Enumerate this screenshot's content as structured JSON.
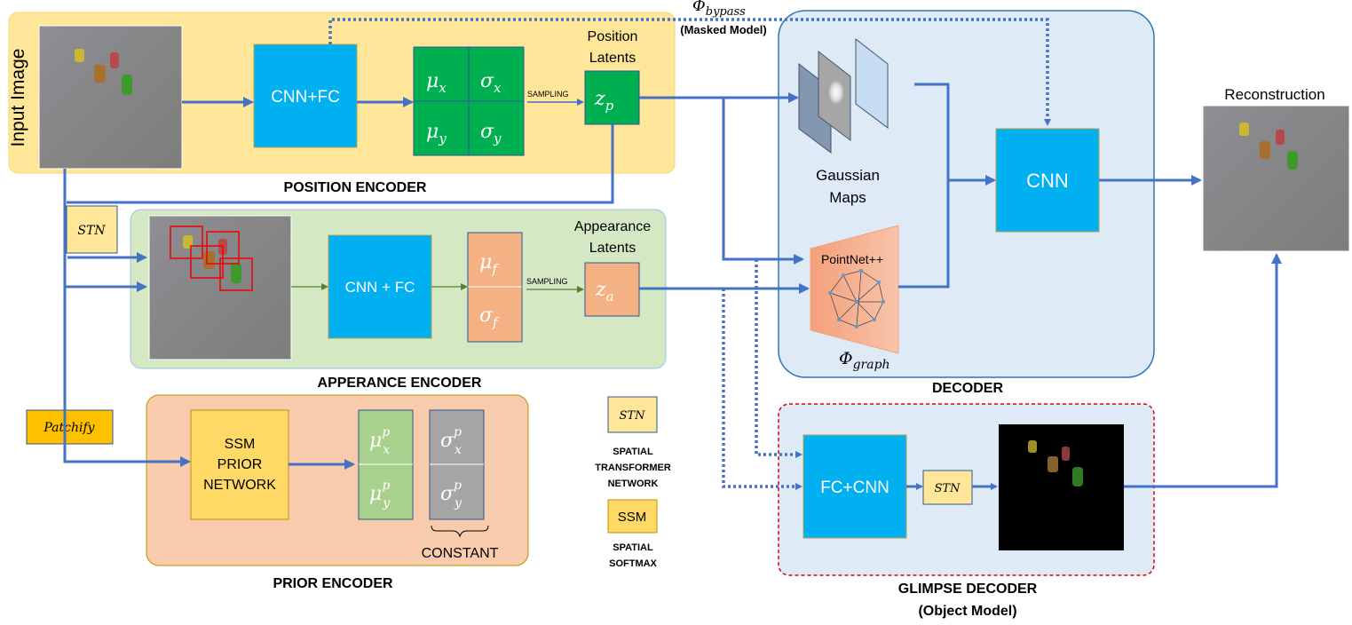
{
  "colors": {
    "arrow": "#4472C4",
    "position_bg": "#FFE699",
    "appearance_bg": "#D5E8C4",
    "prior_bg": "#F8CBAD",
    "decoder_bg": "#DEEBF7",
    "cnn_blue": "#00B0F0",
    "latent_green": "#00B050",
    "latent_orange": "#F4B183",
    "prior_green": "#A9D18E",
    "prior_gray": "#A5A5A5",
    "ssm_yellow": "#FFD966",
    "patchify_gold": "#FFC000",
    "glimpse_border": "#E00000"
  },
  "position_encoder": {
    "title": "POSITION ENCODER",
    "input_label": "Input Image",
    "cnn_label": "CNN+FC",
    "mu_x": {
      "base": "μ",
      "sub": "x"
    },
    "sigma_x": {
      "base": "σ",
      "sub": "x"
    },
    "mu_y": {
      "base": "μ",
      "sub": "y"
    },
    "sigma_y": {
      "base": "σ",
      "sub": "y"
    },
    "sampling": "SAMPLING",
    "latents_label": [
      "Position",
      "Latents"
    ],
    "z": {
      "base": "z",
      "sub": "p"
    }
  },
  "bypass": {
    "symbol": "Φ",
    "sub": "bypass",
    "label": "(Masked Model)"
  },
  "stn_label": "STN",
  "appearance_encoder": {
    "title": "APPERANCE ENCODER",
    "cnn_label": "CNN + FC",
    "mu_f": {
      "base": "μ",
      "sub": "f"
    },
    "sigma_f": {
      "base": "σ",
      "sub": "f"
    },
    "sampling": "SAMPLING",
    "latents_label": [
      "Appearance",
      "Latents"
    ],
    "z": {
      "base": "z",
      "sub": "a"
    }
  },
  "prior_encoder": {
    "title": "PRIOR ENCODER",
    "patchify": "Patchify",
    "ssm_label": [
      "SSM",
      "PRIOR",
      "NETWORK"
    ],
    "mu_x": {
      "base": "μ",
      "sub": "x",
      "sup": "p"
    },
    "mu_y": {
      "base": "μ",
      "sub": "y",
      "sup": "p"
    },
    "sigma_x": {
      "base": "σ",
      "sub": "x",
      "sup": "p"
    },
    "sigma_y": {
      "base": "σ",
      "sub": "y",
      "sup": "p"
    },
    "constant": "CONSTANT"
  },
  "legend": {
    "stn_box": "STN",
    "stn_desc": [
      "SPATIAL",
      "TRANSFORMER",
      "NETWORK"
    ],
    "ssm_box": "SSM",
    "ssm_desc": [
      "SPATIAL",
      "SOFTMAX"
    ]
  },
  "decoder": {
    "title": "DECODER",
    "gaussian_label": [
      "Gaussian",
      "Maps"
    ],
    "cnn_label": "CNN",
    "pointnet_label": "PointNet++",
    "graph": {
      "symbol": "Φ",
      "sub": "graph"
    }
  },
  "reconstruction_label": "Reconstruction",
  "glimpse_decoder": {
    "title": "GLIMPSE DECODER",
    "subtitle": "(Object Model)",
    "fc_cnn_label": "FC+CNN",
    "stn": "STN"
  }
}
